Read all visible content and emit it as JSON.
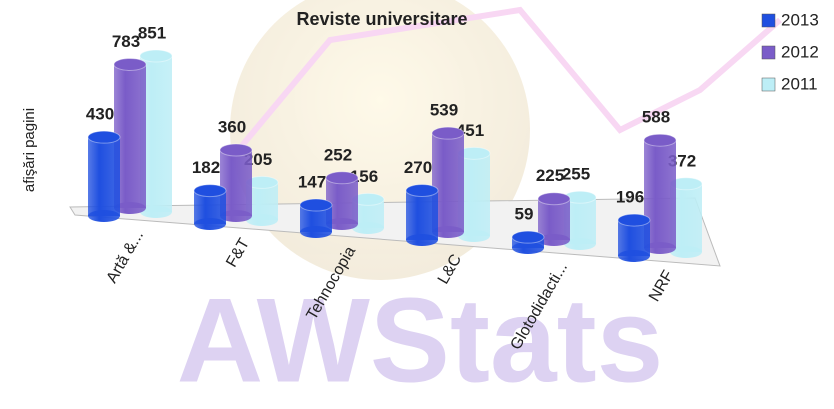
{
  "chart_data": {
    "type": "bar3d",
    "title": "Reviste universitare",
    "y_label": "afişări pagini",
    "watermark": "AWStats",
    "categories": [
      "Artă &...",
      "F&T",
      "Tehnocopia",
      "L&C",
      "Glotodidacti...",
      "NRF"
    ],
    "series": [
      {
        "name": "2013",
        "color": "#1f4fe0",
        "values": [
          430,
          182,
          147,
          270,
          59,
          196
        ]
      },
      {
        "name": "2012",
        "color": "#7a5cc8",
        "values": [
          783,
          360,
          252,
          539,
          225,
          588
        ]
      },
      {
        "name": "2011",
        "color": "#bdeef6",
        "values": [
          851,
          205,
          156,
          451,
          255,
          372
        ]
      }
    ],
    "ylim": [
      0,
      900
    ],
    "legend": "top-right",
    "data_labels": true
  }
}
